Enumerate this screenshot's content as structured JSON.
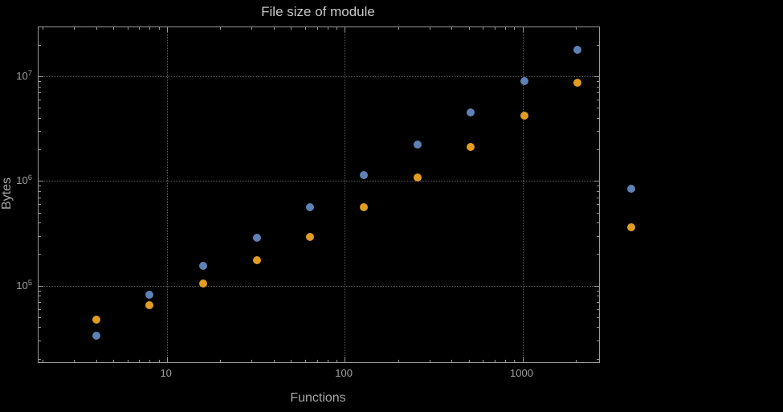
{
  "colors": {
    "frame": "#9a9a9a",
    "grid": "#5f5f5f",
    "title": "#c7c7c7",
    "labels": "#a6a6a6",
    "ticktext": "#a0a0a0",
    "series_blue": "#5e81b5",
    "series_orange": "#e19c24",
    "background": "#000000"
  },
  "chart_data": {
    "type": "scatter",
    "title": "File size of module",
    "xlabel": "Functions",
    "ylabel": "Bytes",
    "xscale": "log",
    "yscale": "log",
    "xlim": [
      1.9,
      2700
    ],
    "ylim": [
      18500,
      29500000
    ],
    "grid": true,
    "legend": false,
    "x": [
      4,
      8,
      16,
      32,
      64,
      128,
      256,
      512,
      1024,
      2048,
      4096
    ],
    "series": [
      {
        "name": "series-blue",
        "color": "#5e81b5",
        "values": [
          33000,
          82000,
          155000,
          285000,
          560000,
          1150000,
          2250000,
          4500000,
          9000000,
          18000000,
          850000
        ]
      },
      {
        "name": "series-orange",
        "color": "#e19c24",
        "values": [
          47000,
          65000,
          105000,
          175000,
          290000,
          560000,
          1080000,
          2100000,
          4200000,
          8700000,
          360000
        ]
      }
    ],
    "x_ticks": [
      {
        "value": 10,
        "label": "10"
      },
      {
        "value": 100,
        "label": "100"
      },
      {
        "value": 1000,
        "label": "1000"
      }
    ],
    "y_ticks": [
      {
        "value": 100000,
        "base": "10",
        "exp": "5"
      },
      {
        "value": 1000000,
        "base": "10",
        "exp": "6"
      },
      {
        "value": 10000000,
        "base": "10",
        "exp": "7"
      }
    ]
  }
}
